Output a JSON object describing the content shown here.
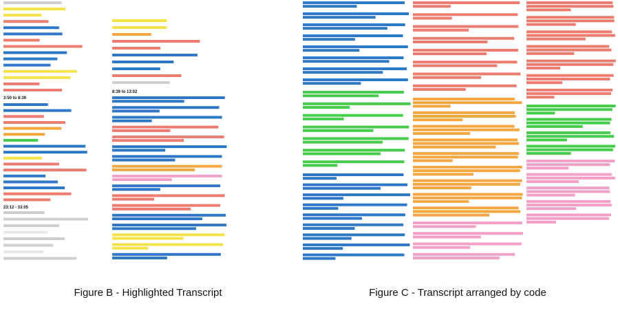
{
  "figures": [
    {
      "caption": "Figure B - Highlighted Transcript",
      "timestamps": [
        "3:50 to 8:39",
        "8:39 to 13:02",
        "23:12 - 33:05"
      ]
    },
    {
      "caption": "Figure C - Transcript arranged by code"
    }
  ]
}
